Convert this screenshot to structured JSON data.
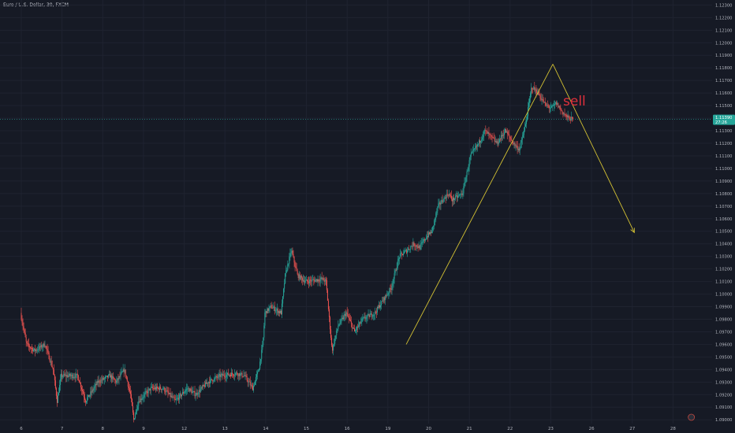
{
  "header": {
    "symbol_title": "Euro / U.S. Dollar, 30, FXCM"
  },
  "price_label": {
    "price": "1.11390",
    "countdown": "27:26"
  },
  "annotation": {
    "text": "sell"
  },
  "colors": {
    "background": "#161a25",
    "grid": "#1f2330",
    "up": "#26a69a",
    "down": "#ef5350",
    "trend_line": "#d4c233",
    "annotation": "#e0303c",
    "axis_text": "#b2b5be",
    "price_line": "#26a69a"
  },
  "event_icons": [
    {
      "name": "lightning-icon",
      "x": 22.45
    },
    {
      "name": "flag-icon",
      "x": 24.8
    },
    {
      "name": "earnings-icon",
      "x": 25.35
    },
    {
      "name": "flag-icon",
      "x": 25.5
    },
    {
      "name": "earnings-icon",
      "x": 27.25
    }
  ],
  "chart_data": {
    "type": "candlestick",
    "title": "Euro / U.S. Dollar, 30, FXCM",
    "x_ticks": [
      "6",
      "7",
      "8",
      "9",
      "12",
      "13",
      "14",
      "15",
      "16",
      "19",
      "20",
      "21",
      "22",
      "23",
      "26",
      "27",
      "28"
    ],
    "y_ticks": [
      "1.12300",
      "1.12200",
      "1.12100",
      "1.12000",
      "1.11900",
      "1.11800",
      "1.11700",
      "1.11600",
      "1.11500",
      "1.11400",
      "1.11300",
      "1.11200",
      "1.11100",
      "1.11000",
      "1.10900",
      "1.10800",
      "1.10700",
      "1.10600",
      "1.10500",
      "1.10400",
      "1.10300",
      "1.10200",
      "1.10100",
      "1.10000",
      "1.09900",
      "1.09800",
      "1.09700",
      "1.09600",
      "1.09500",
      "1.09400",
      "1.09300",
      "1.09200",
      "1.09100",
      "1.09000"
    ],
    "ylim": [
      1.0897,
      1.1234
    ],
    "current_price": 1.1139,
    "close_path": [
      [
        6.0,
        1.0985
      ],
      [
        6.15,
        1.096
      ],
      [
        6.35,
        1.0955
      ],
      [
        6.6,
        1.096
      ],
      [
        6.8,
        1.094
      ],
      [
        6.9,
        1.0915
      ],
      [
        7.0,
        1.0935
      ],
      [
        7.4,
        1.0935
      ],
      [
        7.6,
        1.0915
      ],
      [
        7.9,
        1.093
      ],
      [
        8.2,
        1.0935
      ],
      [
        8.35,
        1.093
      ],
      [
        8.55,
        1.094
      ],
      [
        8.7,
        1.092
      ],
      [
        8.78,
        1.09
      ],
      [
        8.9,
        1.0915
      ],
      [
        9.2,
        1.0925
      ],
      [
        9.5,
        1.0925
      ],
      [
        9.8,
        1.0915
      ],
      [
        10.1,
        1.0925
      ],
      [
        10.3,
        1.092
      ],
      [
        10.6,
        1.093
      ],
      [
        10.9,
        1.0935
      ],
      [
        11.3,
        1.0937
      ],
      [
        11.5,
        1.0935
      ],
      [
        11.7,
        1.0925
      ],
      [
        11.85,
        1.094
      ],
      [
        11.95,
        1.096
      ],
      [
        12.0,
        1.0985
      ],
      [
        12.15,
        1.099
      ],
      [
        12.4,
        1.0985
      ],
      [
        12.5,
        1.1015
      ],
      [
        12.65,
        1.1035
      ],
      [
        12.8,
        1.1015
      ],
      [
        13.0,
        1.101
      ],
      [
        13.4,
        1.1012
      ],
      [
        13.5,
        1.101
      ],
      [
        13.65,
        1.0955
      ],
      [
        13.8,
        1.0975
      ],
      [
        14.0,
        1.0985
      ],
      [
        14.2,
        1.097
      ],
      [
        14.4,
        1.098
      ],
      [
        14.7,
        1.0985
      ],
      [
        14.9,
        1.0995
      ],
      [
        15.1,
        1.1005
      ],
      [
        15.3,
        1.103
      ],
      [
        15.5,
        1.1035
      ],
      [
        15.65,
        1.104
      ],
      [
        15.8,
        1.1037
      ],
      [
        15.95,
        1.1045
      ],
      [
        16.1,
        1.105
      ],
      [
        16.25,
        1.107
      ],
      [
        16.5,
        1.108
      ],
      [
        16.6,
        1.1075
      ],
      [
        16.7,
        1.1077
      ],
      [
        16.85,
        1.108
      ],
      [
        16.95,
        1.1095
      ],
      [
        17.05,
        1.111
      ],
      [
        17.25,
        1.112
      ],
      [
        17.4,
        1.113
      ],
      [
        17.55,
        1.1125
      ],
      [
        17.7,
        1.112
      ],
      [
        17.9,
        1.113
      ],
      [
        18.1,
        1.112
      ],
      [
        18.25,
        1.1115
      ],
      [
        18.4,
        1.1135
      ],
      [
        18.55,
        1.1165
      ],
      [
        18.7,
        1.116
      ],
      [
        18.9,
        1.115
      ],
      [
        19.05,
        1.1148
      ],
      [
        19.15,
        1.1152
      ],
      [
        19.3,
        1.1145
      ],
      [
        19.45,
        1.114
      ],
      [
        19.55,
        1.1139
      ]
    ],
    "trend_lines": [
      {
        "points": [
          [
            15.45,
            1.096
          ],
          [
            19.05,
            1.1183
          ]
        ]
      },
      {
        "points": [
          [
            19.05,
            1.1183
          ],
          [
            21.05,
            1.1049
          ]
        ],
        "arrow": true
      }
    ]
  }
}
